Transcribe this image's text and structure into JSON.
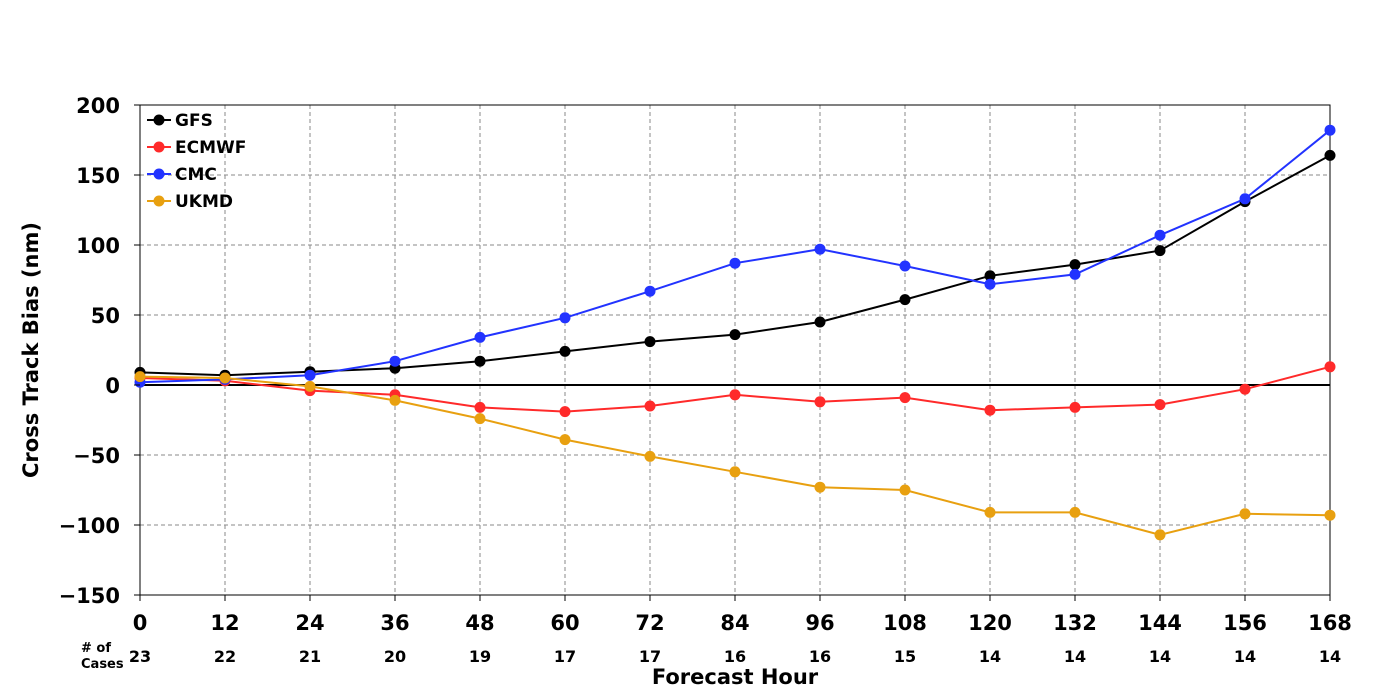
{
  "chart_data": {
    "type": "line",
    "xlabel": "Forecast Hour",
    "ylabel": "Cross Track Bias (nm)",
    "x": [
      0,
      12,
      24,
      36,
      48,
      60,
      72,
      84,
      96,
      108,
      120,
      132,
      144,
      156,
      168
    ],
    "xlim": [
      0,
      168
    ],
    "ylim": [
      -150,
      200
    ],
    "yticks": [
      -150,
      -100,
      -50,
      0,
      50,
      100,
      150,
      200
    ],
    "grid": true,
    "legend_position": "top-left",
    "cases_label": "# of Cases",
    "cases": [
      23,
      22,
      21,
      20,
      19,
      17,
      17,
      16,
      16,
      15,
      14,
      14,
      14,
      14,
      14
    ],
    "series": [
      {
        "name": "GFS",
        "color": "#000000",
        "values": [
          9,
          7,
          9.5,
          12,
          17,
          24,
          31,
          36,
          45,
          61,
          78,
          86,
          96,
          131,
          164
        ]
      },
      {
        "name": "ECMWF",
        "color": "#ff2a2a",
        "values": [
          5,
          3,
          -4,
          -7,
          -16,
          -19,
          -15,
          -7,
          -12,
          -9,
          -18,
          -16,
          -14,
          -3,
          13
        ]
      },
      {
        "name": "CMC",
        "color": "#2233ff",
        "values": [
          2,
          4,
          7,
          17,
          34,
          48,
          67,
          87,
          97,
          85,
          72,
          79,
          107,
          133,
          182
        ]
      },
      {
        "name": "UKMD",
        "color": "#e8a010",
        "values": [
          6,
          5,
          -1,
          -11,
          -24,
          -39,
          -51,
          -62,
          -73,
          -75,
          -91,
          -91,
          -107,
          -92,
          -93
        ]
      }
    ]
  }
}
